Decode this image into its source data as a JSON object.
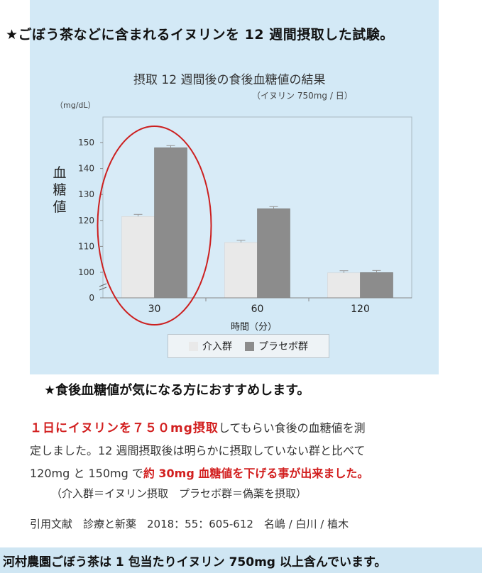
{
  "headline": "★ごぼう茶などに含まれるイヌリンを 12 週間摂取した試験。",
  "chart_data": {
    "type": "bar",
    "title": "摂取 12 週間後の食後血糖値の結果",
    "subtitle": "（イヌリン 750mg / 日）",
    "unit_label": "（mg/dL）",
    "ylabel": "血糖値",
    "xlabel": "時間（分）",
    "categories": [
      "30",
      "60",
      "120"
    ],
    "yticks": [
      "0",
      "100",
      "110",
      "120",
      "130",
      "140",
      "150"
    ],
    "y_axis_break": true,
    "series": [
      {
        "name": "介入群",
        "values": [
          121.5,
          111.5,
          98
        ],
        "color": "#e9e9e9"
      },
      {
        "name": "プラセボ群",
        "values": [
          148,
          124.5,
          99
        ],
        "color": "#8c8c8c"
      }
    ],
    "legend_position": "bottom",
    "highlight": {
      "category": "30",
      "color": "#cc1f1f",
      "shape": "ellipse"
    }
  },
  "recommendation": "★食後血糖値が気になる方におすすめします。",
  "body": {
    "line1_red": "１日にイヌリンを７５０mg摂取",
    "line1_rest": "してもらい食後の血糖値を測",
    "line2": "定しました。12 週間摂取後は明らかに摂取していない群と比べて",
    "line3_start": "120mg と 150mg で",
    "line3_red": "約 30mg 血糖値を下げる事が出来ました。"
  },
  "note": "（介入群＝イヌリン摂取　プラセボ群＝偽薬を摂取）",
  "reference": "引用文献　診療と新薬　2018：55：605-612　名嶋 / 白川 / 植木",
  "footer": "河村農園ごぼう茶は 1 包当たりイヌリン 750mg 以上含んでいます。"
}
